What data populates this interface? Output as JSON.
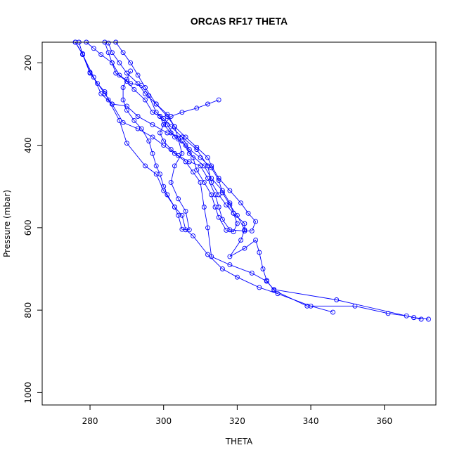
{
  "chart_data": {
    "type": "line",
    "title": "ORCAS RF17 THETA",
    "xlabel": "THETA",
    "ylabel": "Pressure (mbar)",
    "xlim": [
      267,
      374
    ],
    "ylim": [
      1030,
      150
    ],
    "y_reversed": true,
    "xticks": [
      280,
      300,
      320,
      340,
      360
    ],
    "yticks": [
      200,
      400,
      600,
      800,
      1000
    ],
    "grid": false,
    "legend": "none",
    "colors": {
      "series": "#0000ff",
      "axes": "#000000",
      "background": "#ffffff"
    },
    "marker": "open-circle",
    "series": [
      {
        "points": [
          [
            276,
            150
          ],
          [
            278,
            180
          ],
          [
            280,
            225
          ],
          [
            282,
            250
          ],
          [
            284,
            270
          ],
          [
            285,
            290
          ],
          [
            288,
            340
          ],
          [
            290,
            395
          ],
          [
            295,
            450
          ],
          [
            298,
            470
          ],
          [
            300,
            510
          ],
          [
            303,
            550
          ],
          [
            305,
            570
          ],
          [
            306,
            605
          ],
          [
            308,
            620
          ],
          [
            312,
            665
          ],
          [
            316,
            700
          ],
          [
            320,
            720
          ],
          [
            326,
            745
          ],
          [
            331,
            760
          ],
          [
            340,
            790
          ],
          [
            346,
            805
          ]
        ]
      },
      {
        "points": [
          [
            277,
            150
          ],
          [
            278,
            180
          ],
          [
            281,
            235
          ],
          [
            283,
            275
          ],
          [
            286,
            300
          ],
          [
            289,
            345
          ],
          [
            293,
            360
          ],
          [
            297,
            380
          ],
          [
            300,
            400
          ],
          [
            303,
            420
          ],
          [
            306,
            440
          ],
          [
            308,
            465
          ],
          [
            310,
            490
          ],
          [
            311,
            550
          ],
          [
            312,
            600
          ],
          [
            313,
            670
          ],
          [
            318,
            690
          ],
          [
            324,
            710
          ],
          [
            328,
            730
          ],
          [
            330,
            750
          ],
          [
            347,
            775
          ],
          [
            368,
            818
          ],
          [
            372,
            822
          ]
        ]
      },
      {
        "points": [
          [
            276,
            150
          ],
          [
            278,
            178
          ],
          [
            280,
            223
          ],
          [
            284,
            275
          ],
          [
            286,
            300
          ],
          [
            290,
            305
          ],
          [
            293,
            330
          ],
          [
            297,
            350
          ],
          [
            301,
            370
          ],
          [
            305,
            380
          ],
          [
            309,
            410
          ],
          [
            312,
            450
          ],
          [
            313,
            490
          ],
          [
            315,
            520
          ],
          [
            317,
            545
          ],
          [
            319,
            565
          ],
          [
            322,
            590
          ],
          [
            322,
            608
          ],
          [
            318,
            605
          ],
          [
            316,
            580
          ],
          [
            315,
            550
          ],
          [
            314,
            520
          ],
          [
            312,
            480
          ],
          [
            310,
            450
          ],
          [
            307,
            440
          ],
          [
            304,
            425
          ],
          [
            302,
            410
          ],
          [
            300,
            390
          ],
          [
            299,
            370
          ],
          [
            300,
            350
          ],
          [
            302,
            330
          ],
          [
            305,
            320
          ],
          [
            309,
            310
          ],
          [
            312,
            300
          ],
          [
            315,
            290
          ]
        ]
      },
      {
        "points": [
          [
            279,
            150
          ],
          [
            281,
            165
          ],
          [
            283,
            180
          ],
          [
            286,
            200
          ],
          [
            288,
            230
          ],
          [
            291,
            250
          ],
          [
            294,
            255
          ],
          [
            296,
            280
          ],
          [
            298,
            320
          ],
          [
            300,
            335
          ],
          [
            302,
            355
          ],
          [
            305,
            380
          ],
          [
            307,
            410
          ],
          [
            310,
            430
          ],
          [
            313,
            455
          ],
          [
            315,
            485
          ],
          [
            316,
            515
          ],
          [
            318,
            545
          ],
          [
            320,
            570
          ],
          [
            322,
            605
          ],
          [
            321,
            630
          ],
          [
            318,
            670
          ],
          [
            322,
            650
          ],
          [
            325,
            630
          ],
          [
            326,
            660
          ],
          [
            327,
            700
          ],
          [
            328,
            728
          ],
          [
            330,
            752
          ],
          [
            339,
            790
          ],
          [
            352,
            790
          ],
          [
            361,
            808
          ],
          [
            366,
            814
          ],
          [
            368,
            818
          ],
          [
            370,
            822
          ]
        ]
      },
      {
        "points": [
          [
            284,
            150
          ],
          [
            285,
            175
          ],
          [
            286,
            200
          ],
          [
            287,
            225
          ],
          [
            290,
            245
          ],
          [
            292,
            265
          ],
          [
            295,
            290
          ],
          [
            297,
            320
          ],
          [
            299,
            330
          ],
          [
            301,
            350
          ],
          [
            303,
            380
          ],
          [
            306,
            400
          ],
          [
            308,
            430
          ],
          [
            309,
            460
          ],
          [
            311,
            490
          ],
          [
            313,
            520
          ],
          [
            314,
            550
          ],
          [
            315,
            575
          ],
          [
            317,
            606
          ],
          [
            319,
            610
          ],
          [
            320,
            590
          ],
          [
            319,
            565
          ],
          [
            318,
            540
          ],
          [
            316,
            510
          ],
          [
            313,
            480
          ],
          [
            311,
            450
          ],
          [
            307,
            420
          ],
          [
            305,
            390
          ],
          [
            302,
            370
          ],
          [
            300,
            350
          ],
          [
            299,
            330
          ]
        ]
      },
      {
        "points": [
          [
            287,
            150
          ],
          [
            289,
            175
          ],
          [
            291,
            200
          ],
          [
            293,
            230
          ],
          [
            295,
            260
          ],
          [
            298,
            300
          ],
          [
            301,
            330
          ],
          [
            303,
            355
          ],
          [
            306,
            380
          ],
          [
            309,
            405
          ],
          [
            312,
            430
          ],
          [
            313,
            450
          ],
          [
            315,
            480
          ],
          [
            318,
            510
          ],
          [
            321,
            540
          ],
          [
            323,
            565
          ],
          [
            325,
            585
          ],
          [
            324,
            608
          ],
          [
            322,
            608
          ]
        ]
      },
      {
        "points": [
          [
            285,
            152
          ],
          [
            286,
            175
          ],
          [
            288,
            200
          ],
          [
            290,
            225
          ],
          [
            293,
            250
          ],
          [
            295,
            275
          ],
          [
            298,
            300
          ],
          [
            301,
            325
          ],
          [
            303,
            355
          ],
          [
            304,
            385
          ],
          [
            305,
            420
          ],
          [
            303,
            450
          ],
          [
            302,
            490
          ],
          [
            304,
            530
          ],
          [
            306,
            560
          ],
          [
            307,
            605
          ],
          [
            305,
            604
          ],
          [
            304,
            570
          ],
          [
            303,
            550
          ],
          [
            301,
            520
          ],
          [
            300,
            500
          ],
          [
            299,
            470
          ],
          [
            298,
            450
          ],
          [
            297,
            420
          ],
          [
            296,
            390
          ],
          [
            294,
            360
          ],
          [
            292,
            340
          ],
          [
            290,
            315
          ],
          [
            289,
            290
          ],
          [
            289,
            260
          ],
          [
            290,
            240
          ],
          [
            291,
            220
          ]
        ]
      }
    ]
  }
}
